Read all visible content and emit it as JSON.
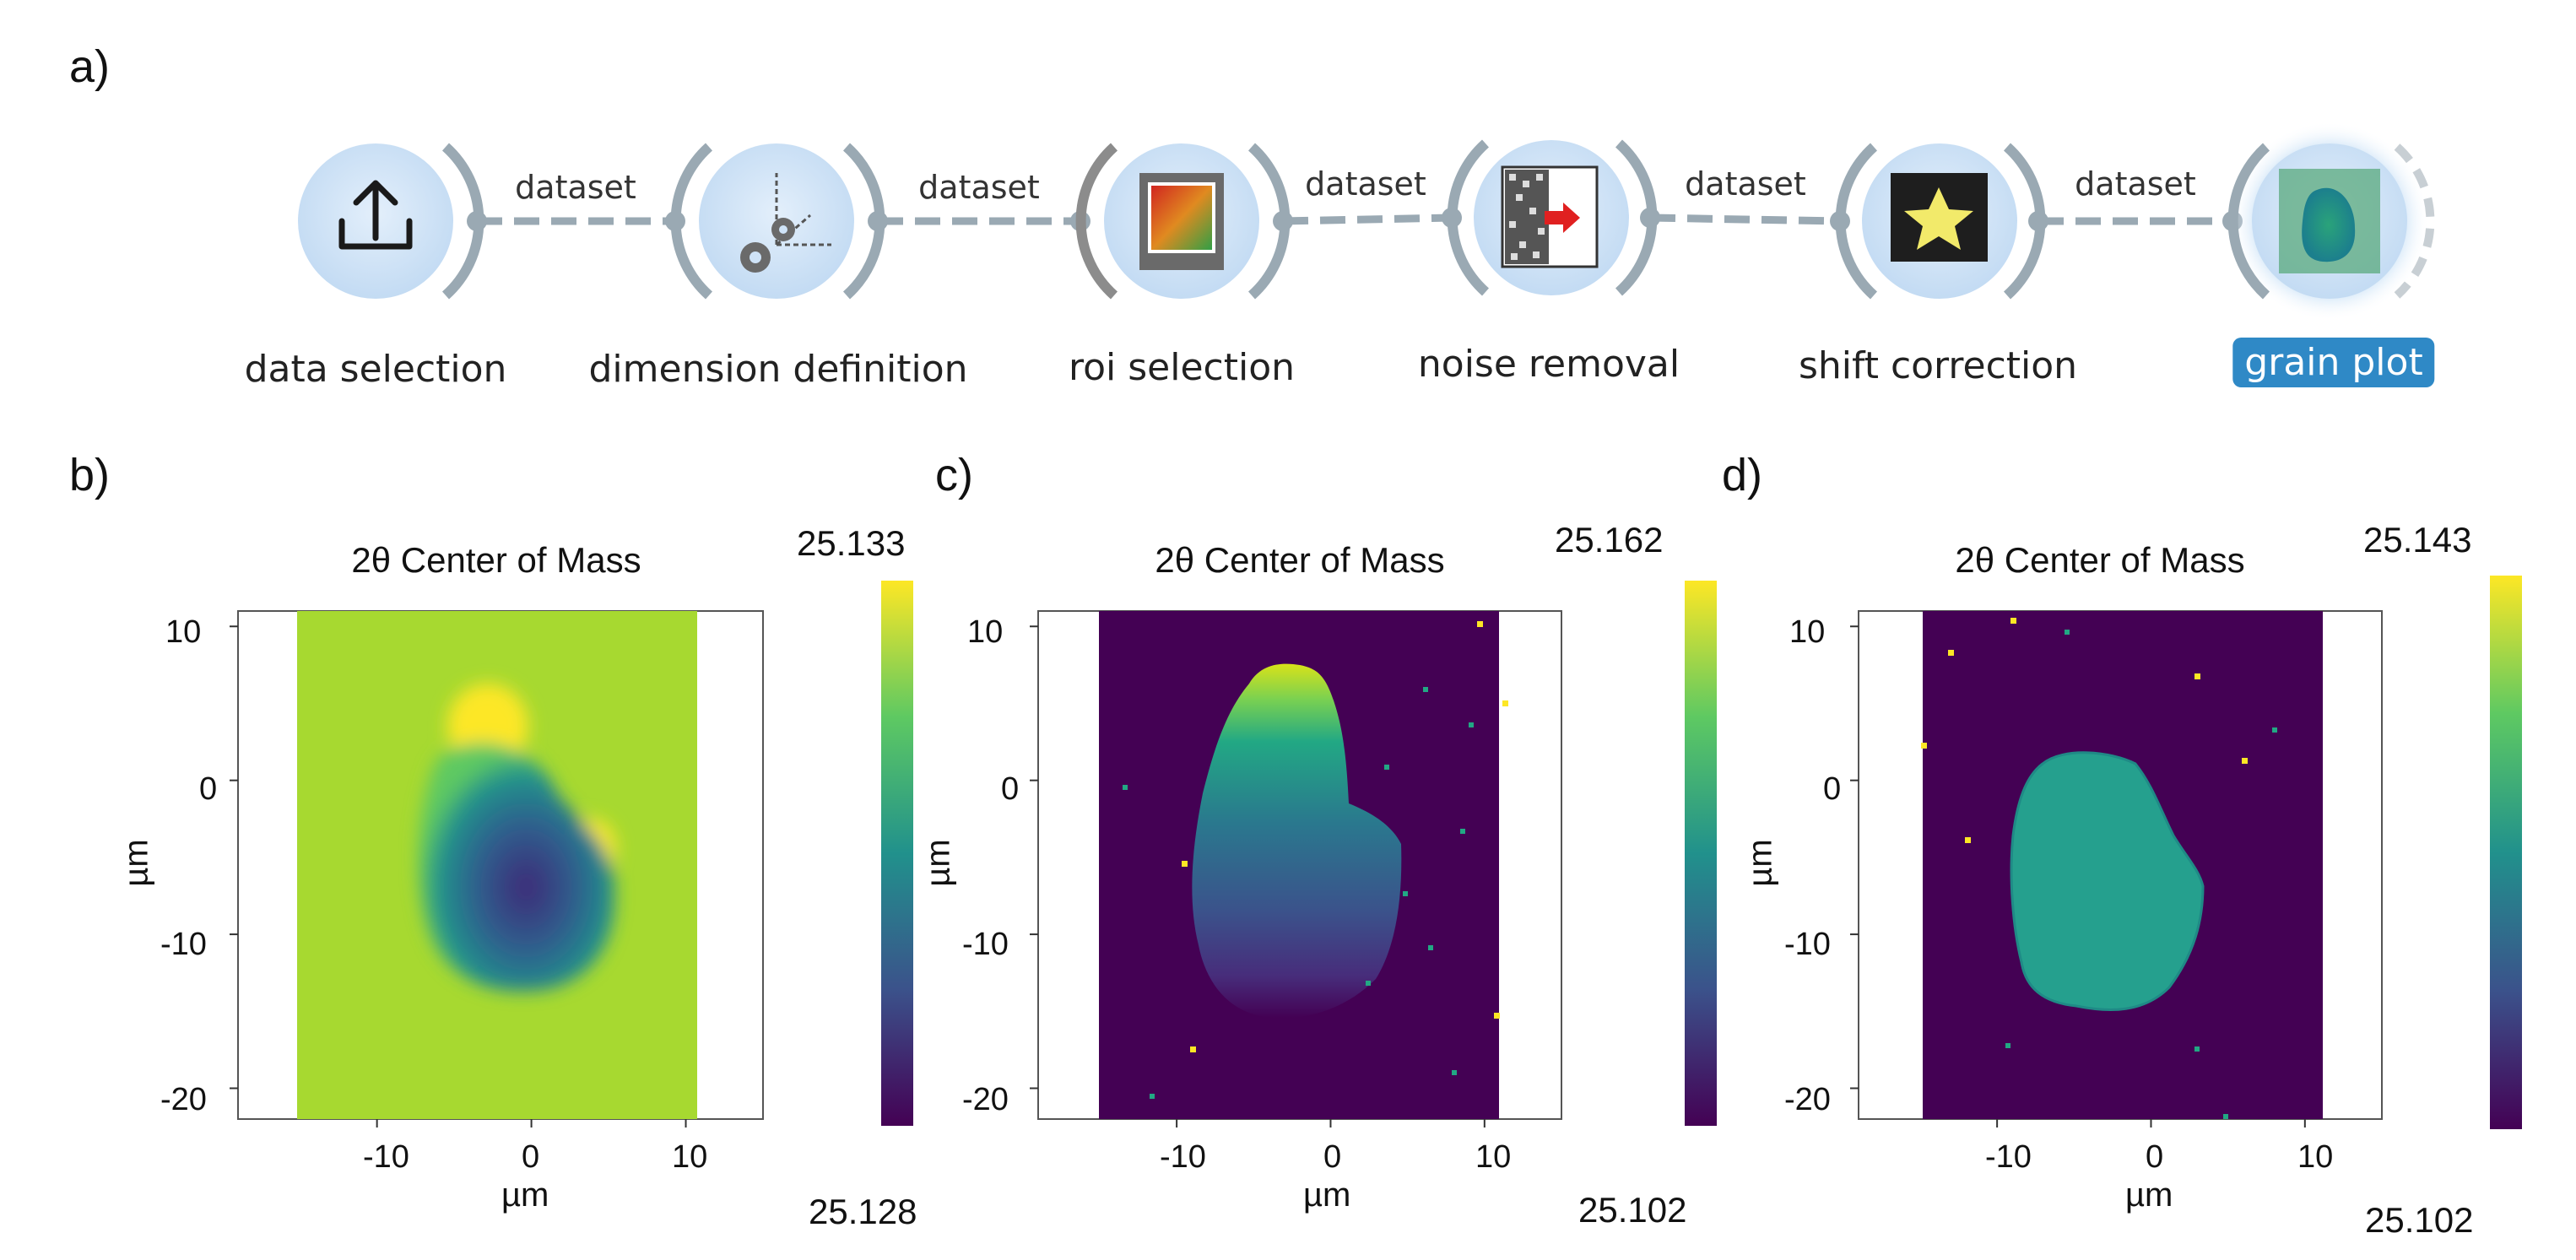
{
  "panel_labels": [
    "a)",
    "b)",
    "c)",
    "d)"
  ],
  "workflow": {
    "nodes": [
      {
        "label": "data selection",
        "icon": "upload-icon"
      },
      {
        "label": "dimension definition",
        "icon": "gears-axes-icon"
      },
      {
        "label": "roi selection",
        "icon": "roi-image-icon"
      },
      {
        "label": "noise removal",
        "icon": "noise-filter-icon"
      },
      {
        "label": "shift correction",
        "icon": "star-shift-icon"
      },
      {
        "label": "grain plot",
        "icon": "grain-map-icon",
        "selected": true
      }
    ],
    "links": [
      "dataset",
      "dataset",
      "dataset",
      "dataset",
      "dataset"
    ],
    "colors": {
      "node_fill": "#cfe3f7",
      "connector": "#9aa9b3",
      "selected_bg": "#2f89c6"
    }
  },
  "chart_data": [
    {
      "type": "heatmap",
      "panel": "b)",
      "title": "2θ Center of Mass",
      "xlabel": "µm",
      "ylabel": "µm",
      "xlim": [
        -19,
        15
      ],
      "ylim": [
        -22,
        11
      ],
      "data_extent": {
        "x": [
          -15,
          11
        ],
        "y": [
          -22,
          11
        ]
      },
      "xticks": [
        -10,
        0,
        10
      ],
      "yticks": [
        10,
        0,
        -10,
        -20
      ],
      "colormap": "viridis",
      "colorbar": {
        "min": 25.128,
        "max": 25.133
      },
      "xtick_labels": [
        "-10",
        "0",
        "10"
      ],
      "ytick_labels": [
        "10",
        "0",
        "-10",
        "-20"
      ],
      "colorbar_labels": {
        "top": "25.133",
        "bottom": "25.128"
      }
    },
    {
      "type": "heatmap",
      "panel": "c)",
      "title": "2θ Center of Mass",
      "xlabel": "µm",
      "ylabel": "µm",
      "xlim": [
        -19,
        15
      ],
      "ylim": [
        -22,
        11
      ],
      "data_extent": {
        "x": [
          -15,
          11
        ],
        "y": [
          -22,
          11
        ]
      },
      "xticks": [
        -10,
        0,
        10
      ],
      "yticks": [
        10,
        0,
        -10,
        -20
      ],
      "colormap": "viridis",
      "colorbar": {
        "min": 25.102,
        "max": 25.162
      },
      "xtick_labels": [
        "-10",
        "0",
        "10"
      ],
      "ytick_labels": [
        "10",
        "0",
        "-10",
        "-20"
      ],
      "colorbar_labels": {
        "top": "25.162",
        "bottom": "25.102"
      }
    },
    {
      "type": "heatmap",
      "panel": "d)",
      "title": "2θ Center of Mass",
      "xlabel": "µm",
      "ylabel": "µm",
      "xlim": [
        -19,
        15
      ],
      "ylim": [
        -22,
        11
      ],
      "data_extent": {
        "x": [
          -15,
          11
        ],
        "y": [
          -22,
          11
        ]
      },
      "xticks": [
        -10,
        0,
        10
      ],
      "yticks": [
        10,
        0,
        -10,
        -20
      ],
      "colormap": "viridis",
      "colorbar": {
        "min": 25.102,
        "max": 25.143
      },
      "xtick_labels": [
        "-10",
        "0",
        "10"
      ],
      "ytick_labels": [
        "10",
        "0",
        "-10",
        "-20"
      ],
      "colorbar_labels": {
        "top": "25.143",
        "bottom": "25.102"
      }
    }
  ]
}
